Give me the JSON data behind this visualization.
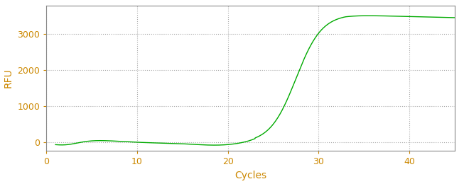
{
  "xlabel": "Cycles",
  "ylabel": "RFU",
  "line_color": "#00aa00",
  "background_color": "#ffffff",
  "grid_color": "#aaaaaa",
  "axis_color": "#888888",
  "tick_label_color": "#cc8800",
  "label_color": "#cc8800",
  "xlim": [
    0,
    45
  ],
  "ylim": [
    -250,
    3800
  ],
  "xticks": [
    0,
    10,
    20,
    30,
    40
  ],
  "yticks": [
    0,
    1000,
    2000,
    3000
  ],
  "x_start": 1,
  "x_end": 45
}
